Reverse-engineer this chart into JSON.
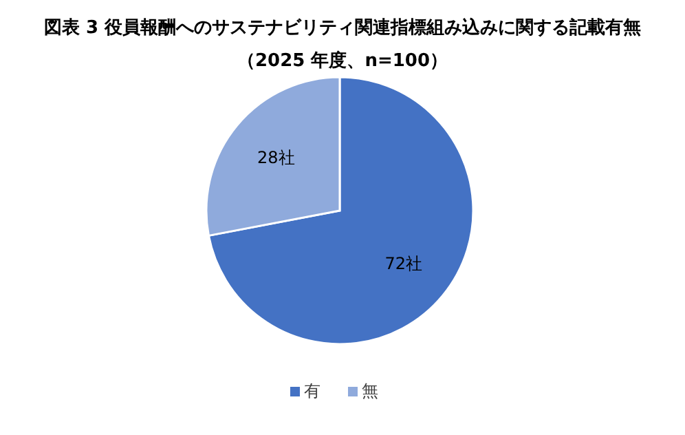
{
  "chart_data": {
    "type": "pie",
    "title": "図表 3 役員報酬へのサステナビリティ関連指標組み込みに関する記載有無",
    "subtitle": "（2025 年度、n=100）",
    "categories": [
      "有",
      "無"
    ],
    "values": [
      72,
      28
    ],
    "value_labels": [
      "72社",
      "28社"
    ],
    "colors": [
      "#4472c4",
      "#8faadc"
    ],
    "legend": "bottom"
  }
}
